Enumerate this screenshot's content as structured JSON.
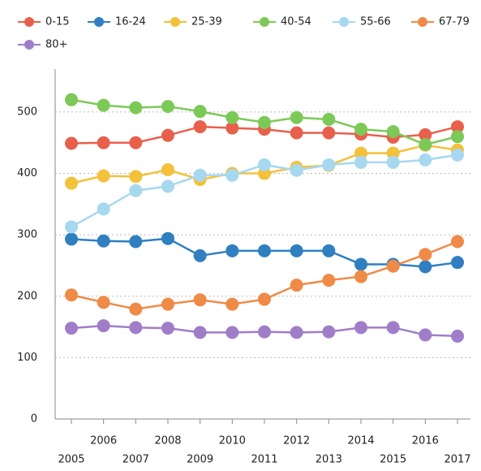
{
  "chart_data": {
    "type": "line",
    "categories": [
      "2005",
      "2006",
      "2007",
      "2008",
      "2009",
      "2010",
      "2011",
      "2012",
      "2013",
      "2014",
      "2015",
      "2016",
      "2017"
    ],
    "ylim": [
      0,
      570
    ],
    "yticks": [
      0,
      100,
      200,
      300,
      400,
      500
    ],
    "grid": true,
    "series": [
      {
        "name": "0-15",
        "color": "#e8604c",
        "values": [
          449,
          450,
          450,
          462,
          476,
          474,
          472,
          466,
          466,
          464,
          459,
          463,
          476
        ]
      },
      {
        "name": "16-24",
        "color": "#2f7fc1",
        "values": [
          293,
          290,
          289,
          294,
          266,
          274,
          274,
          274,
          274,
          252,
          252,
          248,
          255
        ]
      },
      {
        "name": "25-39",
        "color": "#f3c13a",
        "values": [
          384,
          396,
          395,
          406,
          390,
          400,
          400,
          410,
          413,
          433,
          433,
          446,
          438
        ]
      },
      {
        "name": "40-54",
        "color": "#7cc957",
        "values": [
          520,
          511,
          507,
          509,
          501,
          491,
          483,
          491,
          488,
          472,
          468,
          447,
          460
        ]
      },
      {
        "name": "55-66",
        "color": "#a6d8f0",
        "values": [
          313,
          342,
          372,
          379,
          397,
          397,
          414,
          405,
          414,
          418,
          418,
          422,
          430
        ]
      },
      {
        "name": "67-79",
        "color": "#ef8a47",
        "values": [
          202,
          190,
          179,
          187,
          194,
          187,
          195,
          218,
          226,
          232,
          249,
          268,
          289
        ]
      },
      {
        "name": "80+",
        "color": "#a07dc9",
        "values": [
          148,
          152,
          149,
          148,
          141,
          141,
          142,
          141,
          142,
          149,
          149,
          137,
          135
        ]
      }
    ]
  }
}
